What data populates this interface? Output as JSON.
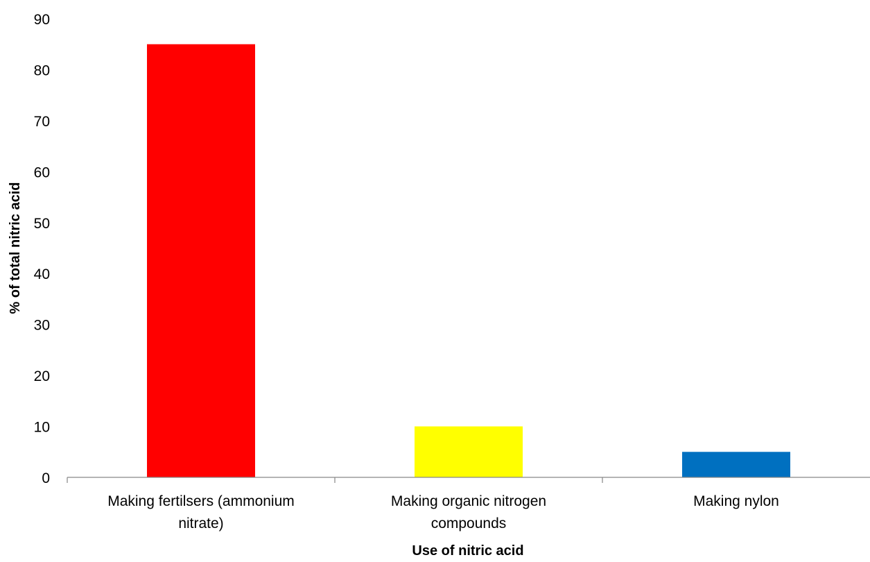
{
  "chart_data": {
    "type": "bar",
    "categories": [
      [
        "Making fertilsers (ammonium",
        "nitrate)"
      ],
      [
        "Making organic nitrogen",
        "compounds"
      ],
      [
        "Making nylon"
      ]
    ],
    "values": [
      85,
      10,
      5
    ],
    "colors": [
      "#ff0000",
      "#ffff00",
      "#0070c0"
    ],
    "xlabel": "Use of nitric acid",
    "ylabel": "% of total nitric acid",
    "ylim": [
      0,
      90
    ],
    "yticks": [
      0,
      10,
      20,
      30,
      40,
      50,
      60,
      70,
      80,
      90
    ],
    "grid": false,
    "legend": "none"
  }
}
